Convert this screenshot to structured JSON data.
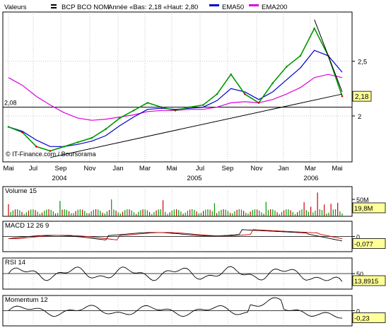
{
  "header": {
    "prefix": "Valeurs",
    "name": "BCP BCO NOM.",
    "stats": "Année «Bas: 2,18 «Haut: 2,80",
    "legend": [
      {
        "name": "EMA50",
        "color": "#0000cc"
      },
      {
        "name": "EMA200",
        "color": "#dd00dd"
      }
    ]
  },
  "copyright": "© IT-Finance.com / Boursorama",
  "colors": {
    "price_up": "#009900",
    "price_down": "#cc0000",
    "ema50": "#0000cc",
    "ema200": "#dd00dd",
    "grid": "#999999",
    "axis": "#000000",
    "last_badge_bg": "#ffff99"
  },
  "x_axis": {
    "months": [
      "Mai",
      "Jul",
      "Sep",
      "Nov",
      "Jan",
      "Mar",
      "Mai",
      "Jul",
      "Sep",
      "Nov",
      "Jan",
      "Mar",
      "Mai"
    ],
    "years": [
      "2004",
      "2005",
      "2006"
    ]
  },
  "panels": {
    "volume": {
      "label": "Volume 15",
      "right_tick": "50M",
      "last": "19,8M"
    },
    "macd": {
      "label": "MACD 12 26 9",
      "right_tick": "0",
      "last": "-0,077"
    },
    "rsi": {
      "label": "RSI 14",
      "right_tick": "50",
      "last": "13,8915"
    },
    "momentum": {
      "label": "Momentum 12",
      "right_tick": "0",
      "last": "-0,23"
    }
  },
  "chart_data": [
    {
      "type": "line",
      "title": "BCP BCO NOM.",
      "y_ticks": [
        "2",
        "2,5"
      ],
      "ylim": [
        1.58,
        2.95
      ],
      "reference_line": {
        "value": 2.08,
        "label": "2,08"
      },
      "last_value": {
        "value": 2.18,
        "label": "2,18"
      },
      "x": [
        "2004-05",
        "2004-06",
        "2004-07",
        "2004-08",
        "2004-09",
        "2004-10",
        "2004-11",
        "2004-12",
        "2005-01",
        "2005-02",
        "2005-03",
        "2005-04",
        "2005-05",
        "2005-06",
        "2005-07",
        "2005-08",
        "2005-09",
        "2005-10",
        "2005-11",
        "2005-12",
        "2006-01",
        "2006-02",
        "2006-03",
        "2006-04",
        "2006-05"
      ],
      "series": [
        {
          "name": "",
          "values": [
            1.9,
            1.85,
            1.72,
            1.68,
            1.72,
            1.76,
            1.8,
            1.88,
            1.98,
            2.05,
            2.12,
            2.08,
            2.05,
            2.08,
            2.1,
            2.2,
            2.38,
            2.2,
            2.12,
            2.3,
            2.45,
            2.55,
            2.8,
            2.55,
            2.18
          ]
        },
        {
          "name": "EMA50",
          "values": [
            1.9,
            1.86,
            1.78,
            1.72,
            1.72,
            1.74,
            1.77,
            1.82,
            1.91,
            1.99,
            2.06,
            2.07,
            2.06,
            2.07,
            2.08,
            2.14,
            2.25,
            2.22,
            2.15,
            2.22,
            2.33,
            2.44,
            2.6,
            2.55,
            2.4
          ]
        },
        {
          "name": "EMA200",
          "values": [
            2.35,
            2.28,
            2.18,
            2.1,
            2.03,
            1.98,
            1.96,
            1.97,
            1.99,
            2.01,
            2.04,
            2.05,
            2.05,
            2.06,
            2.06,
            2.08,
            2.12,
            2.13,
            2.12,
            2.15,
            2.2,
            2.26,
            2.35,
            2.38,
            2.35
          ]
        }
      ],
      "trendlines": [
        {
          "from": {
            "x": "2004-08",
            "value": 1.62
          },
          "to": {
            "x": "2006-05",
            "value": 2.2
          }
        },
        {
          "from": {
            "x": "2006-03",
            "value": 2.88
          },
          "to": {
            "x": "2006-05",
            "value": 2.22
          }
        }
      ]
    },
    {
      "type": "bar",
      "title": "Volume 15",
      "y_ticks": [
        "50M"
      ],
      "last": "19,8M"
    },
    {
      "type": "line",
      "title": "MACD 12 26 9",
      "y_ticks": [
        "0"
      ],
      "last": "-0,077"
    },
    {
      "type": "line",
      "title": "RSI 14",
      "y_ticks": [
        "50"
      ],
      "last": "13,8915"
    },
    {
      "type": "line",
      "title": "Momentum 12",
      "y_ticks": [
        "0"
      ],
      "last": "-0,23"
    }
  ]
}
